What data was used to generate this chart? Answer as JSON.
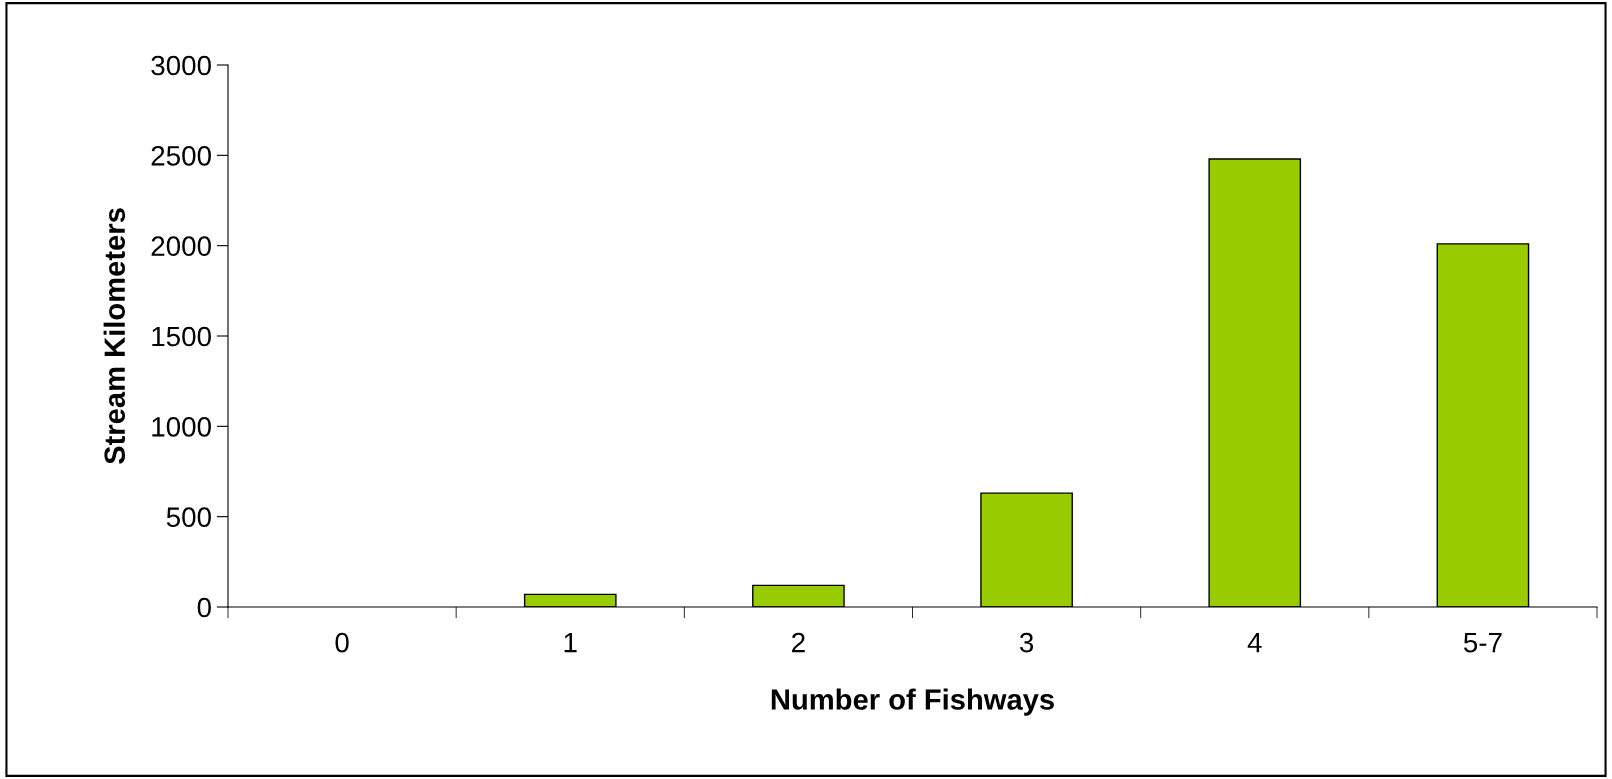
{
  "chart_data": {
    "type": "bar",
    "xlabel": "Number of Fishways",
    "ylabel": "Stream Kilometers",
    "categories": [
      "0",
      "1",
      "2",
      "3",
      "4",
      "5-7"
    ],
    "values": [
      0,
      70,
      120,
      630,
      2480,
      2010
    ],
    "color": "#99cc00",
    "ylim": [
      0,
      3000
    ],
    "yticks": [
      0,
      500,
      1000,
      1500,
      2000,
      2500,
      3000
    ],
    "grid": false,
    "legend": false
  }
}
